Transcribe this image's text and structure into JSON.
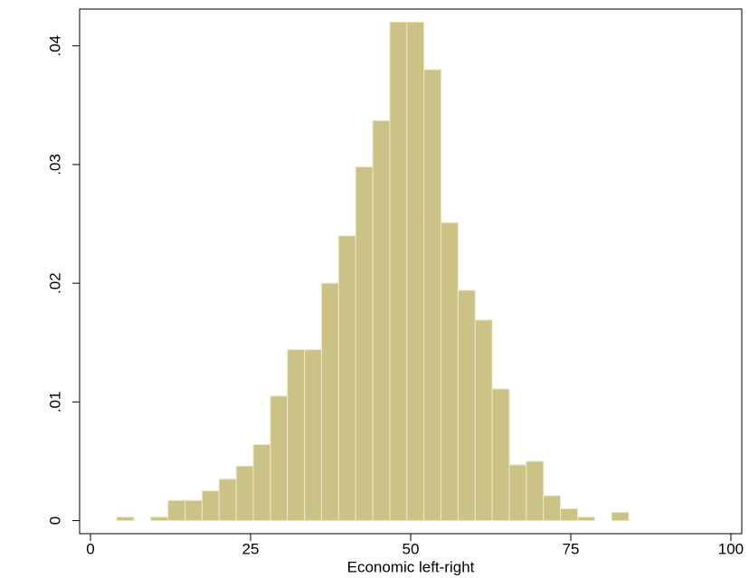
{
  "chart_data": {
    "type": "histogram",
    "xlabel": "Economic left-right",
    "bins": [
      4.1,
      6.77,
      9.43,
      12.1,
      14.76,
      17.43,
      20.09,
      22.76,
      25.42,
      28.09,
      30.75,
      33.42,
      36.08,
      38.75,
      41.41,
      44.08,
      46.74,
      49.41,
      52.07,
      54.74,
      57.4,
      60.07,
      62.73,
      65.4,
      68.06,
      70.73,
      73.39,
      76.06,
      78.72,
      81.39,
      84.05
    ],
    "values": [
      0.0003,
      0,
      0.0003,
      0.0017,
      0.0017,
      0.0025,
      0.0035,
      0.0046,
      0.0064,
      0.0105,
      0.0144,
      0.0144,
      0.02,
      0.024,
      0.0298,
      0.0337,
      0.042,
      0.042,
      0.038,
      0.0251,
      0.0194,
      0.0169,
      0.0111,
      0.0047,
      0.005,
      0.0021,
      0.001,
      0.0003,
      0,
      0.0007
    ],
    "color": "#cbc385",
    "xlim": [
      -1.7,
      101.7
    ],
    "xticks": [
      0,
      25,
      50,
      75,
      100
    ],
    "ylim": [
      -0.0011,
      0.0431
    ],
    "yticks": [
      0,
      {
        "value": 0.01,
        "label": ".01"
      },
      {
        "value": 0.02,
        "label": ".02"
      },
      {
        "value": 0.03,
        "label": ".03"
      },
      {
        "value": 0.04,
        "label": ".04"
      }
    ]
  }
}
